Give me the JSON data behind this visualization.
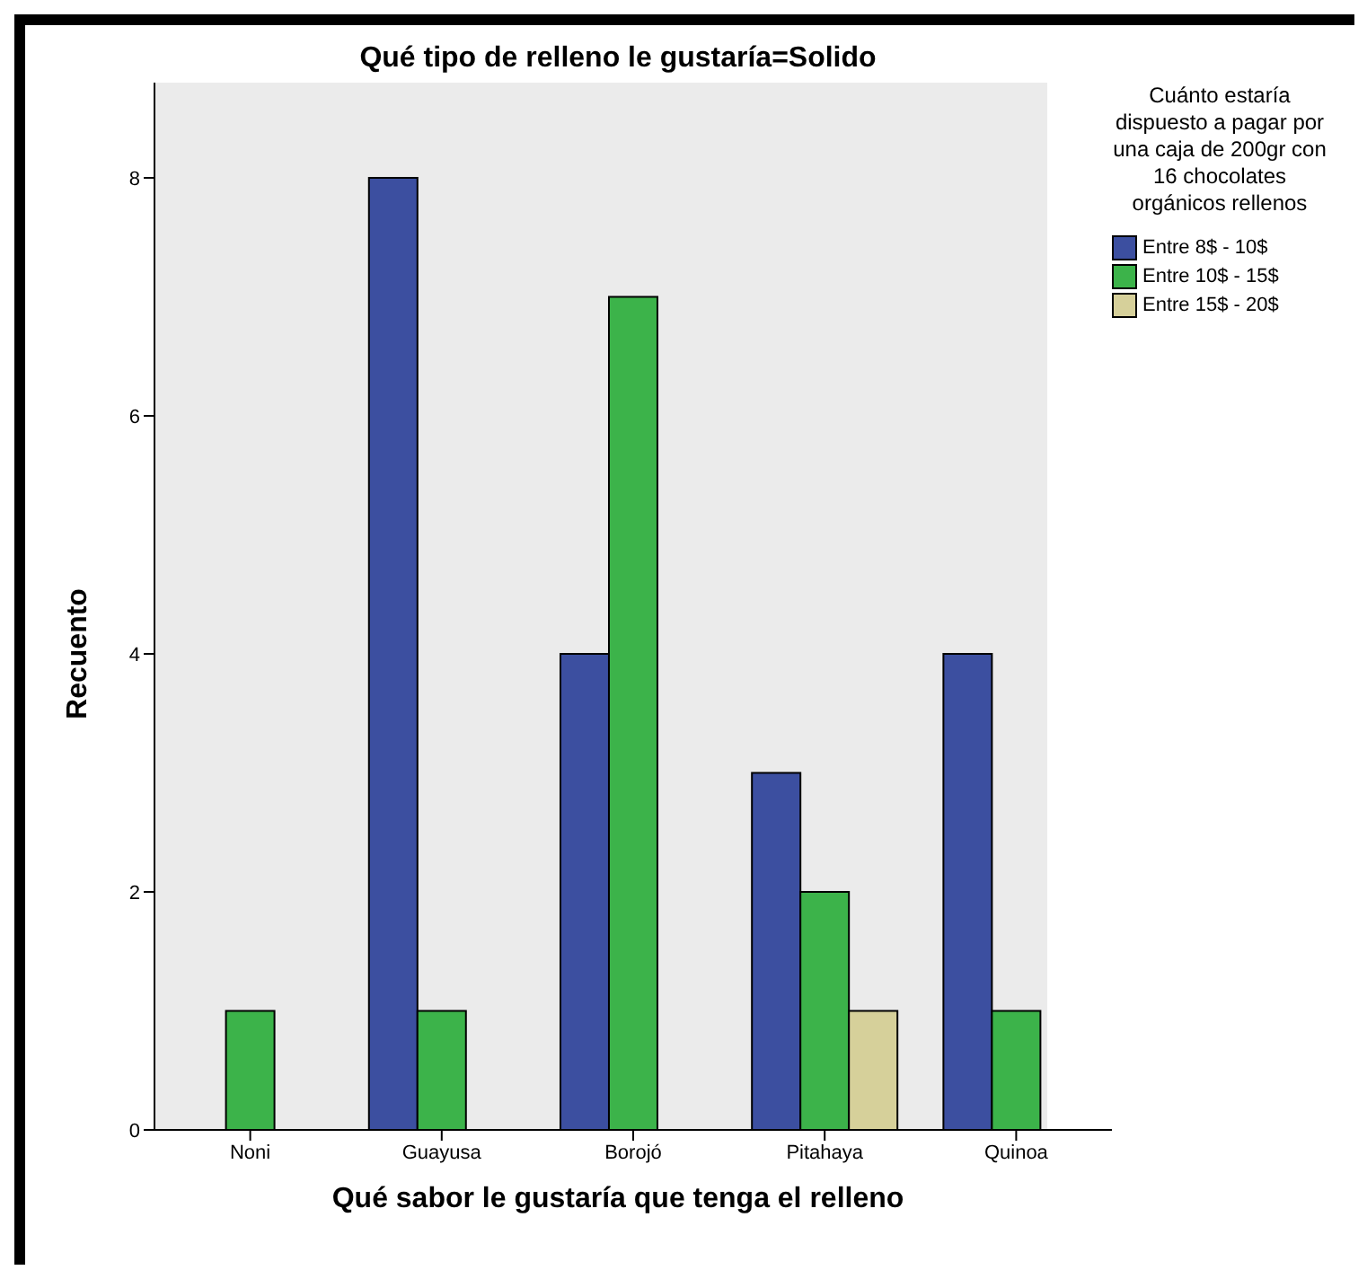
{
  "chart_data": {
    "type": "bar",
    "title": "Qué tipo de relleno le gustaría=Solido",
    "xlabel": "Qué sabor le gustaría que tenga el relleno",
    "ylabel": "Recuento",
    "legend_title": "Cuánto estaría dispuesto a pagar por una caja de 200gr con 16 chocolates orgánicos rellenos",
    "categories": [
      "Noni",
      "Guayusa",
      "Borojó",
      "Pitahaya",
      "Quinoa"
    ],
    "series": [
      {
        "name": "Entre 8$ - 10$",
        "color": "#3c4fa0",
        "values": [
          null,
          8,
          4,
          3,
          4
        ]
      },
      {
        "name": "Entre 10$ - 15$",
        "color": "#3cb34a",
        "values": [
          1,
          1,
          7,
          2,
          1
        ]
      },
      {
        "name": "Entre 15$ - 20$",
        "color": "#d6d09a",
        "values": [
          null,
          null,
          null,
          1,
          null
        ]
      }
    ],
    "ylim": [
      0,
      8.8
    ],
    "yticks": [
      0,
      2,
      4,
      6,
      8
    ],
    "legend": "right"
  }
}
